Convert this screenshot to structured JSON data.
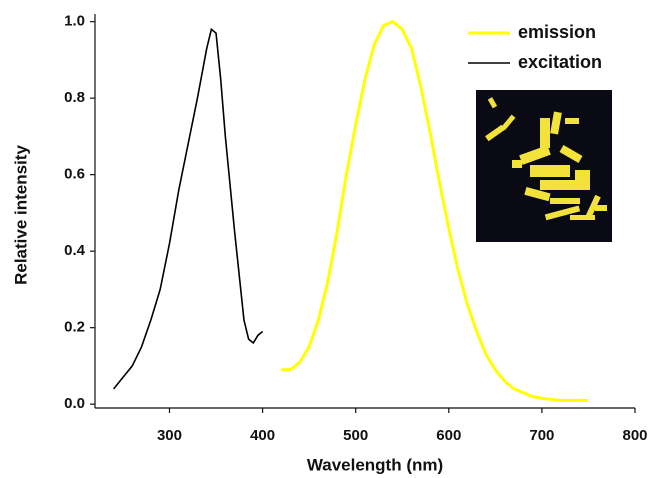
{
  "chart_data": {
    "type": "line",
    "xlabel": "Wavelength (nm)",
    "ylabel": "Relative intensity",
    "xlim": [
      220,
      800
    ],
    "ylim": [
      -0.01,
      1.02
    ],
    "xticks": [
      300,
      400,
      500,
      600,
      700,
      800
    ],
    "yticks": [
      {
        "value": 0,
        "label": "0.0"
      },
      0.2,
      0.4,
      0.6,
      0.8,
      {
        "value": 1,
        "label": "1.0"
      }
    ],
    "legend": "upper-right",
    "series": [
      {
        "name": "emission",
        "color": "#ffff00",
        "x": [
          420,
          430,
          440,
          450,
          460,
          470,
          480,
          490,
          500,
          510,
          520,
          530,
          540,
          550,
          560,
          570,
          580,
          590,
          600,
          610,
          620,
          630,
          640,
          650,
          660,
          670,
          680,
          690,
          700,
          720,
          750
        ],
        "values": [
          0.09,
          0.09,
          0.11,
          0.15,
          0.22,
          0.32,
          0.45,
          0.6,
          0.73,
          0.85,
          0.94,
          0.99,
          1.0,
          0.98,
          0.93,
          0.83,
          0.71,
          0.58,
          0.46,
          0.35,
          0.26,
          0.19,
          0.13,
          0.09,
          0.06,
          0.04,
          0.03,
          0.02,
          0.015,
          0.01,
          0.01
        ]
      },
      {
        "name": "excitation",
        "color": "#000000",
        "x": [
          240,
          250,
          260,
          270,
          280,
          290,
          300,
          310,
          320,
          330,
          340,
          345,
          350,
          355,
          360,
          370,
          380,
          385,
          390,
          395,
          400
        ],
        "values": [
          0.04,
          0.07,
          0.1,
          0.15,
          0.22,
          0.3,
          0.42,
          0.56,
          0.68,
          0.8,
          0.93,
          0.98,
          0.97,
          0.85,
          0.7,
          0.45,
          0.22,
          0.17,
          0.16,
          0.18,
          0.19
        ]
      }
    ]
  }
}
